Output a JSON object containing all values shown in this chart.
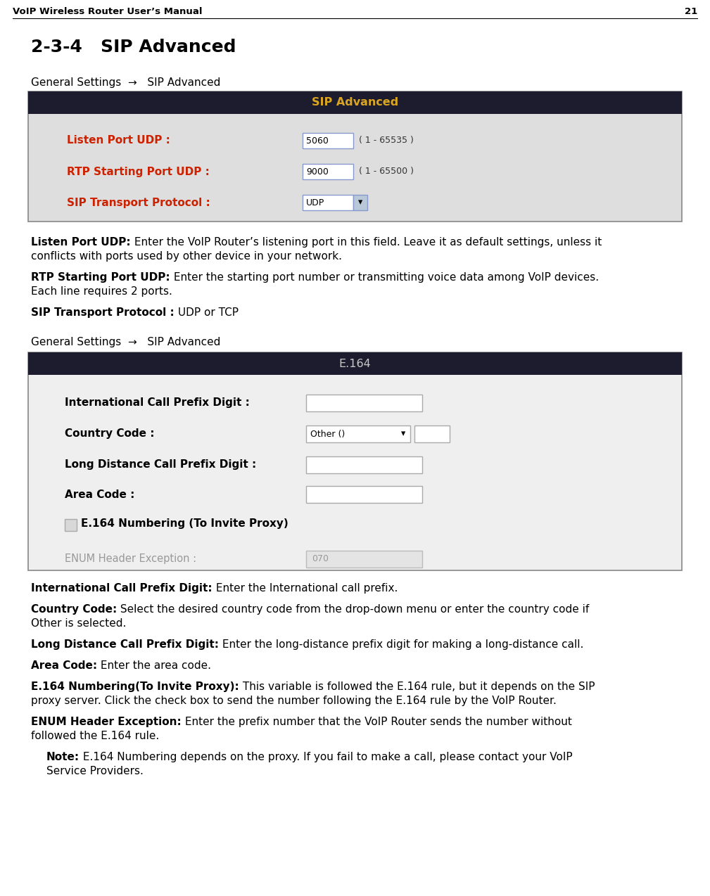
{
  "page_title": "VoIP Wireless Router User’s Manual",
  "page_number": "21",
  "section_title": "2-3-4   SIP Advanced",
  "nav1": "General Settings  →   SIP Advanced",
  "nav2": "General Settings  →   SIP Advanced",
  "table1_header": "SIP Advanced",
  "table1_rows": [
    {
      "label": "Listen Port UDP :",
      "value": "5060",
      "extra": "( 1 - 65535 )",
      "has_dropdown": false
    },
    {
      "label": "RTP Starting Port UDP :",
      "value": "9000",
      "extra": "( 1 - 65500 )",
      "has_dropdown": false
    },
    {
      "label": "SIP Transport Protocol :",
      "value": "UDP",
      "extra": "",
      "has_dropdown": true
    }
  ],
  "table2_header": "E.164",
  "table2_rows": [
    {
      "label": "International Call Prefix Digit :",
      "type": "textbox",
      "value": ""
    },
    {
      "label": "Country Code :",
      "type": "dropdown_plus_textbox",
      "dropdown_val": "Other ()"
    },
    {
      "label": "Long Distance Call Prefix Digit :",
      "type": "textbox",
      "value": ""
    },
    {
      "label": "Area Code :",
      "type": "textbox",
      "value": ""
    },
    {
      "label": "E.164 Numbering (To Invite Proxy)",
      "type": "checkbox",
      "value": ""
    },
    {
      "label": "ENUM Header Exception :",
      "type": "textbox_disabled",
      "value": "070"
    }
  ],
  "desc1_paragraphs": [
    {
      "bold": "Listen Port UDP:",
      "normal": " Enter the VoIP Router’s listening port in this field. Leave it as default settings, unless it\nconflicts with ports used by other device in your network."
    },
    {
      "bold": "RTP Starting Port UDP:",
      "normal": " Enter the starting port number or transmitting voice data among VoIP devices.\nEach line requires 2 ports."
    },
    {
      "bold": "SIP Transport Protocol :",
      "normal": " UDP or TCP"
    }
  ],
  "desc2_paragraphs": [
    {
      "bold": "International Call Prefix Digit:",
      "normal": " Enter the International call prefix."
    },
    {
      "bold": "Country Code:",
      "normal": " Select the desired country code from the drop-down menu or enter the country code if\nOther is selected."
    },
    {
      "bold": "Long Distance Call Prefix Digit:",
      "normal": " Enter the long-distance prefix digit for making a long-distance call."
    },
    {
      "bold": "Area Code:",
      "normal": " Enter the area code."
    },
    {
      "bold": "E.164 Numbering(To Invite Proxy):",
      "normal": " This variable is followed the E.164 rule, but it depends on the SIP\nproxy server. Click the check box to send the number following the E.164 rule by the VoIP Router."
    },
    {
      "bold": "ENUM Header Exception:",
      "normal": " Enter the prefix number that the VoIP Router sends the number without\nfollowed the E.164 rule."
    }
  ],
  "note_bold": "Note:",
  "note_normal": " E.164 Numbering depends on the proxy. If you fail to make a call, please contact your VoIP\nService Providers.",
  "header_dark_bg": "#1c1c2e",
  "header_yellow": "#DAA520",
  "header_gray": "#c8c8c8",
  "table1_bg": "#dedede",
  "table2_bg": "#efefef",
  "table_border": "#888888",
  "input_bg": "#ffffff",
  "input_border_blue": "#8899cc",
  "input_border_gray": "#aaaaaa",
  "disabled_bg": "#e4e4e4",
  "disabled_fg": "#999999",
  "disabled_border": "#bbbbbb",
  "label_red": "#cc2200",
  "dd_btn_bg": "#b8c8d8",
  "page_bg": "#ffffff",
  "text_black": "#000000",
  "body_fontsize": 11,
  "label_fontsize": 11,
  "header_fontsize": 11.5,
  "nav_fontsize": 11,
  "title_fontsize": 18,
  "hdr_line_fontsize": 9.5
}
